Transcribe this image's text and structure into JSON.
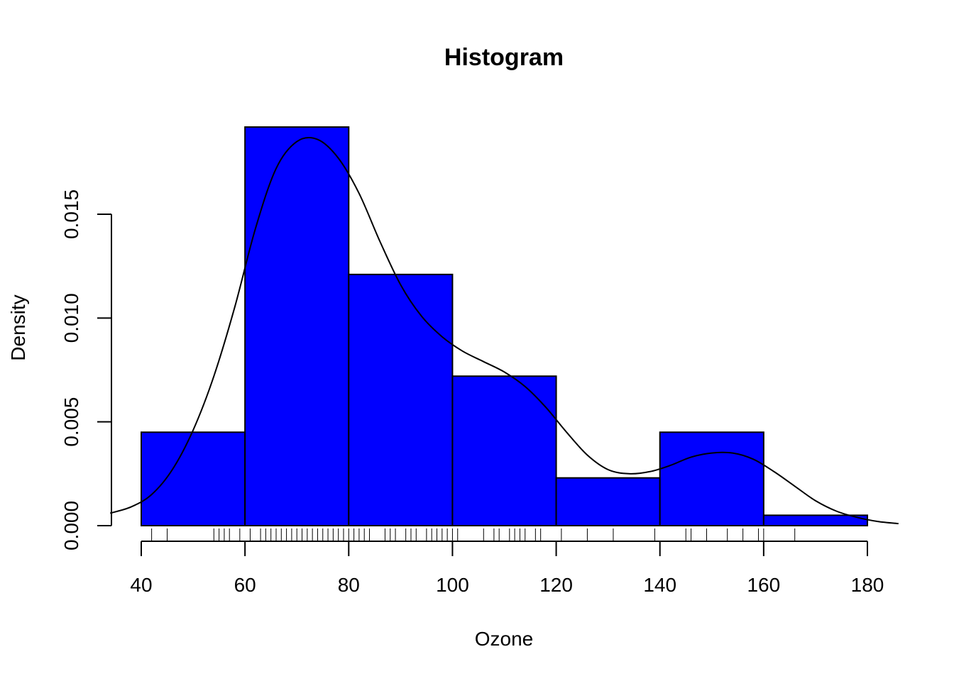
{
  "chart_data": {
    "type": "histogram",
    "title": "Histogram",
    "xlabel": "Ozone",
    "ylabel": "Density",
    "bar_color": "#0000ff",
    "bins": [
      {
        "start": 40,
        "end": 60,
        "density": 0.0045
      },
      {
        "start": 60,
        "end": 80,
        "density": 0.0192
      },
      {
        "start": 80,
        "end": 100,
        "density": 0.0121
      },
      {
        "start": 100,
        "end": 120,
        "density": 0.0072
      },
      {
        "start": 120,
        "end": 140,
        "density": 0.0023
      },
      {
        "start": 140,
        "end": 160,
        "density": 0.0045
      },
      {
        "start": 160,
        "end": 180,
        "density": 0.0005
      }
    ],
    "density_curve": {
      "x": [
        34,
        38,
        42,
        46,
        50,
        54,
        58,
        62,
        66,
        70,
        74,
        78,
        82,
        86,
        90,
        94,
        98,
        102,
        106,
        110,
        114,
        118,
        122,
        126,
        130,
        134,
        138,
        142,
        146,
        150,
        154,
        158,
        162,
        166,
        170,
        174,
        178,
        182,
        186
      ],
      "y": [
        0.0006,
        0.0009,
        0.0015,
        0.0027,
        0.0046,
        0.0072,
        0.0105,
        0.0143,
        0.0172,
        0.0185,
        0.0186,
        0.0177,
        0.016,
        0.0137,
        0.0116,
        0.0101,
        0.0091,
        0.0084,
        0.0079,
        0.0074,
        0.0067,
        0.0057,
        0.0045,
        0.0034,
        0.0027,
        0.0025,
        0.0026,
        0.0029,
        0.0033,
        0.0035,
        0.0035,
        0.0032,
        0.0026,
        0.0019,
        0.0012,
        0.0007,
        0.0004,
        0.0002,
        0.0001
      ]
    },
    "rug": [
      42,
      45,
      54,
      55,
      56,
      57,
      59,
      61,
      63,
      64,
      65,
      66,
      67,
      68,
      69,
      70,
      71,
      72,
      73,
      74,
      75,
      76,
      77,
      78,
      79,
      80,
      81,
      82,
      83,
      84,
      87,
      88,
      89,
      91,
      92,
      93,
      95,
      96,
      97,
      98,
      99,
      100,
      101,
      106,
      108,
      109,
      111,
      112,
      113,
      114,
      116,
      117,
      121,
      126,
      131,
      139,
      145,
      146,
      149,
      153,
      156,
      159,
      160,
      166
    ],
    "xticks": [
      "40",
      "60",
      "80",
      "100",
      "120",
      "140",
      "160",
      "180"
    ],
    "yticks": [
      "0.000",
      "0.005",
      "0.010",
      "0.015"
    ],
    "xlim": [
      34,
      186
    ],
    "ylim": [
      0,
      0.0195
    ]
  }
}
